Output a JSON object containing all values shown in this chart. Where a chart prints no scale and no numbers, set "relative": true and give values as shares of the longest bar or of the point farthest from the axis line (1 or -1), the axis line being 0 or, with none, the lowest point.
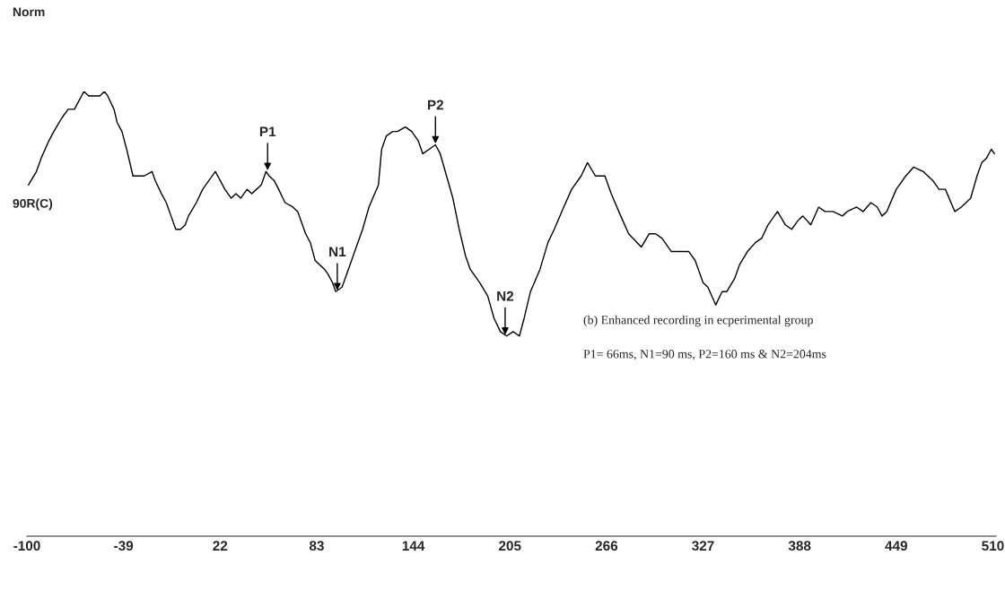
{
  "chart_data": {
    "type": "line",
    "relative": true,
    "xlim": [
      -100,
      512
    ],
    "xticks": [
      -100,
      -39,
      22,
      83,
      144,
      205,
      266,
      327,
      388,
      449,
      510
    ],
    "grid": false,
    "marker": "none",
    "line_style": "solid",
    "series": [
      {
        "color": "#000000",
        "x": [
          -99,
          -94,
          -91,
          -86,
          -83,
          -78,
          -74,
          -70,
          -67,
          -64,
          -61,
          -57,
          -54,
          -51,
          -49,
          -45,
          -43,
          -40,
          -37,
          -33,
          -30,
          -26,
          -21,
          -19,
          -15,
          -12,
          -9,
          -6,
          -3,
          0,
          2,
          7,
          11,
          15,
          19,
          22,
          25,
          29,
          32,
          35,
          39,
          42,
          45,
          48,
          51,
          53,
          56,
          59,
          63,
          68,
          71,
          73,
          76,
          79,
          82,
          85,
          88,
          90,
          93,
          95,
          99,
          103,
          107,
          112,
          116,
          122,
          124,
          127,
          131,
          134,
          139,
          143,
          147,
          150,
          154,
          158,
          161,
          165,
          169,
          173,
          177,
          180,
          186,
          191,
          195,
          199,
          203,
          207,
          211,
          214,
          218,
          224,
          229,
          233,
          239,
          244,
          250,
          254,
          259,
          265,
          269,
          275,
          280,
          288,
          293,
          297,
          301,
          307,
          315,
          318,
          322,
          327,
          330,
          335,
          339,
          342,
          347,
          350,
          355,
          360,
          364,
          368,
          374,
          379,
          383,
          387,
          390,
          395,
          400,
          404,
          409,
          415,
          418,
          424,
          428,
          433,
          437,
          440,
          443,
          449,
          455,
          460,
          466,
          472,
          476,
          480,
          486,
          490,
          496,
          500,
          503,
          506,
          509,
          511
        ],
        "values": [
          0.79,
          0.82,
          0.85,
          0.89,
          0.91,
          0.94,
          0.96,
          0.96,
          0.98,
          1.0,
          0.99,
          0.99,
          0.99,
          1.0,
          0.99,
          0.96,
          0.93,
          0.91,
          0.87,
          0.81,
          0.81,
          0.81,
          0.82,
          0.8,
          0.77,
          0.75,
          0.72,
          0.69,
          0.69,
          0.7,
          0.72,
          0.75,
          0.78,
          0.8,
          0.82,
          0.8,
          0.78,
          0.76,
          0.77,
          0.76,
          0.78,
          0.77,
          0.78,
          0.79,
          0.82,
          0.81,
          0.8,
          0.78,
          0.75,
          0.74,
          0.73,
          0.71,
          0.68,
          0.66,
          0.62,
          0.61,
          0.6,
          0.59,
          0.57,
          0.55,
          0.56,
          0.6,
          0.64,
          0.69,
          0.74,
          0.79,
          0.87,
          0.9,
          0.91,
          0.91,
          0.92,
          0.91,
          0.89,
          0.86,
          0.87,
          0.88,
          0.86,
          0.81,
          0.76,
          0.69,
          0.63,
          0.6,
          0.57,
          0.54,
          0.49,
          0.46,
          0.45,
          0.46,
          0.45,
          0.49,
          0.55,
          0.6,
          0.66,
          0.69,
          0.74,
          0.78,
          0.81,
          0.84,
          0.81,
          0.81,
          0.77,
          0.72,
          0.68,
          0.65,
          0.68,
          0.68,
          0.67,
          0.64,
          0.64,
          0.64,
          0.62,
          0.57,
          0.56,
          0.52,
          0.55,
          0.55,
          0.58,
          0.61,
          0.64,
          0.66,
          0.67,
          0.7,
          0.73,
          0.7,
          0.69,
          0.71,
          0.72,
          0.7,
          0.74,
          0.73,
          0.73,
          0.72,
          0.73,
          0.74,
          0.73,
          0.75,
          0.74,
          0.72,
          0.73,
          0.78,
          0.81,
          0.83,
          0.82,
          0.8,
          0.78,
          0.78,
          0.73,
          0.74,
          0.76,
          0.81,
          0.84,
          0.85,
          0.87,
          0.86
        ]
      }
    ],
    "annotations": [
      {
        "text": "P1",
        "x": 52,
        "y": 0.82
      },
      {
        "text": "N1",
        "x": 96,
        "y": 0.55
      },
      {
        "text": "P2",
        "x": 158,
        "y": 0.88
      },
      {
        "text": "N2",
        "x": 202,
        "y": 0.45
      },
      "Norm",
      "90R(C)",
      "(b) Enhanced recording in ecperimental group",
      "P1= 66ms, N1=90 ms, P2=160 ms & N2=204ms"
    ]
  }
}
